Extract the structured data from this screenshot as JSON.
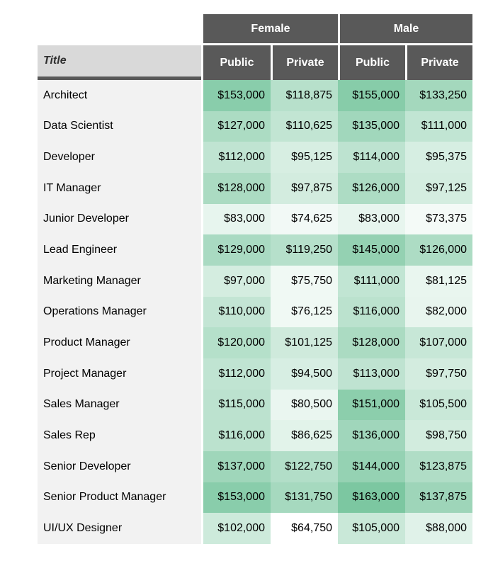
{
  "chart_data": {
    "type": "heatmap",
    "corner_label": "Title",
    "group_headers": [
      "Female",
      "Male"
    ],
    "sub_headers": [
      "Public",
      "Private",
      "Public",
      "Private"
    ],
    "columns": [
      "Female Public",
      "Female Private",
      "Male Public",
      "Male Private"
    ],
    "value_format": "$#,##0",
    "color_scale": {
      "min_value": 64750,
      "max_value": 163000,
      "min_color": "#ffffff",
      "max_color": "#7cc7a1"
    },
    "rows": [
      {
        "title": "Architect",
        "values": [
          153000,
          118875,
          155000,
          133250
        ]
      },
      {
        "title": "Data Scientist",
        "values": [
          127000,
          110625,
          135000,
          111000
        ]
      },
      {
        "title": "Developer",
        "values": [
          112000,
          95125,
          114000,
          95375
        ]
      },
      {
        "title": "IT Manager",
        "values": [
          128000,
          97875,
          126000,
          97125
        ]
      },
      {
        "title": "Junior Developer",
        "values": [
          83000,
          74625,
          83000,
          73375
        ]
      },
      {
        "title": "Lead Engineer",
        "values": [
          129000,
          119250,
          145000,
          126000
        ]
      },
      {
        "title": "Marketing Manager",
        "values": [
          97000,
          75750,
          111000,
          81125
        ]
      },
      {
        "title": "Operations Manager",
        "values": [
          110000,
          76125,
          116000,
          82000
        ]
      },
      {
        "title": "Product Manager",
        "values": [
          120000,
          101125,
          128000,
          107000
        ]
      },
      {
        "title": "Project Manager",
        "values": [
          112000,
          94500,
          113000,
          97750
        ]
      },
      {
        "title": "Sales Manager",
        "values": [
          115000,
          80500,
          151000,
          105500
        ]
      },
      {
        "title": "Sales Rep",
        "values": [
          116000,
          86625,
          136000,
          98750
        ]
      },
      {
        "title": "Senior Developer",
        "values": [
          137000,
          122750,
          144000,
          123875
        ]
      },
      {
        "title": "Senior Product Manager",
        "values": [
          153000,
          131750,
          163000,
          137875
        ]
      },
      {
        "title": "UI/UX Designer",
        "values": [
          102000,
          64750,
          105000,
          88000
        ]
      }
    ]
  },
  "colors": {
    "header_bg": "#595959",
    "header_text": "#ffffff",
    "corner_bg": "#d9d9d9",
    "corner_underline": "#595959",
    "row_label_bg": "#f2f2f2",
    "page_bg": "#ffffff",
    "cell_text": "#000000"
  }
}
